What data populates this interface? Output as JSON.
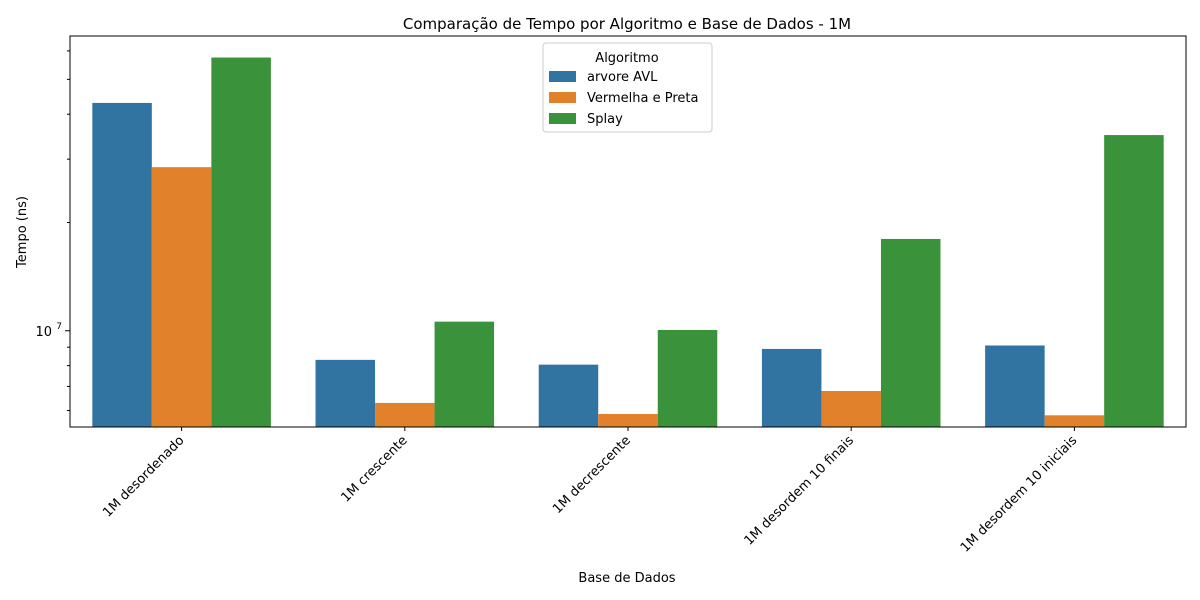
{
  "chart_data": {
    "type": "bar",
    "title": "Comparação de Tempo por Algoritmo e Base de Dados - 1M",
    "xlabel": "Base de Dados",
    "ylabel": "Tempo (ns)",
    "yscale": "log",
    "ylim": [
      5400000,
      66000000
    ],
    "yticks_major": [
      {
        "value": 10000000,
        "label": "10^7"
      }
    ],
    "yticks_minor": [
      6000000,
      7000000,
      8000000,
      9000000,
      20000000,
      30000000,
      40000000,
      50000000,
      60000000
    ],
    "categories": [
      "1M desordenado",
      "1M crescente",
      "1M decrescente",
      "1M desordem 10 finais",
      "1M desordem 10 iniciais"
    ],
    "series": [
      {
        "name": "arvore AVL",
        "color": "#3274a1",
        "values": [
          43000000,
          8300000,
          8050000,
          8900000,
          9100000
        ]
      },
      {
        "name": "Vermelha e Preta",
        "color": "#e1812c",
        "values": [
          28500000,
          6300000,
          5870000,
          6800000,
          5820000
        ]
      },
      {
        "name": "Splay",
        "color": "#3a923a",
        "values": [
          57500000,
          10600000,
          10050000,
          18000000,
          35000000
        ]
      }
    ],
    "legend": {
      "title": "Algoritmo",
      "position": "top-center"
    },
    "grid": false
  }
}
